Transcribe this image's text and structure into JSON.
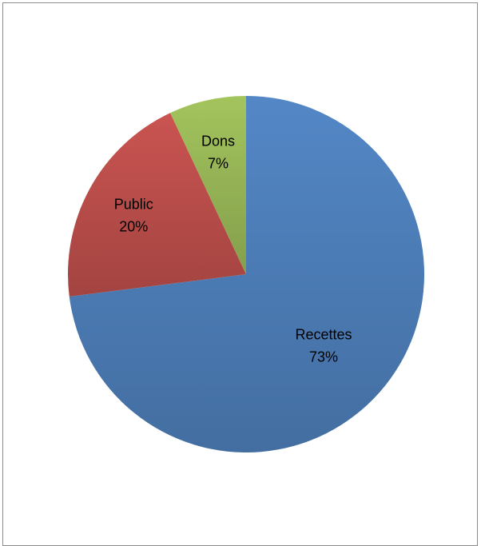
{
  "chart_data": {
    "type": "pie",
    "title": "",
    "slices": [
      {
        "label": "Recettes",
        "value": 73,
        "value_label": "73%",
        "color": "#4f81bd"
      },
      {
        "label": "Public",
        "value": 20,
        "value_label": "20%",
        "color": "#c0504d"
      },
      {
        "label": "Dons",
        "value": 7,
        "value_label": "7%",
        "color": "#9bbb59"
      }
    ],
    "start_angle": "12 o'clock",
    "direction": "clockwise",
    "labels_inside": true,
    "legend": "none"
  }
}
